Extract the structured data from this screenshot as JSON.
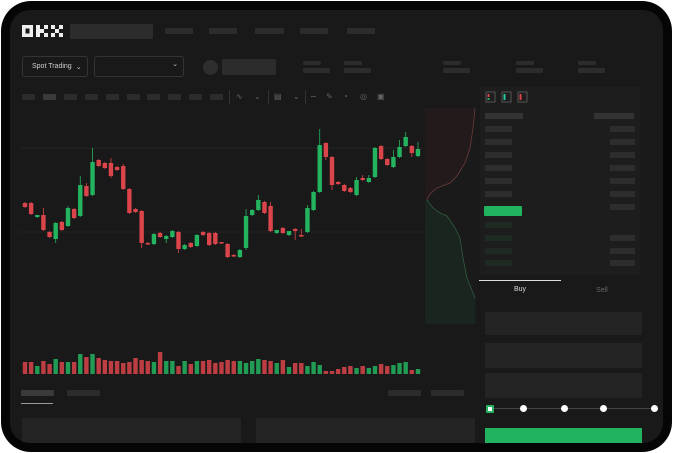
{
  "brand": {
    "logo": "OKX"
  },
  "market_selector": {
    "mode_label": "Spot Trading",
    "pair_value": ""
  },
  "order_form": {
    "tabs": [
      {
        "label": "Buy",
        "active": true
      },
      {
        "label": "Sell",
        "active": false
      }
    ],
    "slider_percent": 0
  },
  "colors": {
    "up": "#24b35f",
    "down": "#d9454a",
    "background": "#191919",
    "frame": "#050505"
  },
  "toolbar": {
    "icons": [
      "indicator-icon",
      "chevron-down-icon",
      "chart-type-icon",
      "chevron-down-icon",
      "line-tool-icon",
      "ruler-icon",
      "camera-icon",
      "target-icon",
      "fullscreen-icon"
    ]
  },
  "orderbook": {
    "layout_icons": [
      "orderbook-both-icon",
      "orderbook-bids-icon",
      "orderbook-asks-icon"
    ]
  },
  "chart_data": {
    "type": "candlestick",
    "title": "",
    "xlabel": "",
    "ylabel": "",
    "grid": true,
    "candles": [
      [
        97,
        98,
        92,
        93
      ],
      [
        97,
        98,
        85,
        86
      ],
      [
        83,
        85,
        82,
        85
      ],
      [
        85,
        92,
        69,
        70
      ],
      [
        68,
        69,
        62,
        63
      ],
      [
        61,
        78,
        57,
        77
      ],
      [
        78,
        79,
        69,
        70
      ],
      [
        74,
        94,
        73,
        92
      ],
      [
        91,
        92,
        81,
        82
      ],
      [
        84,
        124,
        83,
        115
      ],
      [
        114,
        117,
        103,
        104
      ],
      [
        105,
        152,
        104,
        138
      ],
      [
        140,
        141,
        133,
        134
      ],
      [
        137,
        138,
        131,
        132
      ],
      [
        137,
        142,
        122,
        124
      ],
      [
        133,
        134,
        129,
        130
      ],
      [
        134,
        136,
        110,
        111
      ],
      [
        111,
        112,
        86,
        87
      ],
      [
        91,
        92,
        87,
        88
      ],
      [
        89,
        90,
        52,
        57
      ],
      [
        57,
        58,
        55,
        56
      ],
      [
        56,
        67,
        55,
        66
      ],
      [
        67,
        68,
        62,
        63
      ],
      [
        61,
        65,
        57,
        64
      ],
      [
        63,
        70,
        62,
        69
      ],
      [
        68,
        69,
        47,
        51
      ],
      [
        51,
        56,
        50,
        55
      ],
      [
        57,
        58,
        52,
        53
      ],
      [
        54,
        66,
        53,
        65
      ],
      [
        68,
        69,
        64,
        65
      ],
      [
        67,
        68,
        54,
        55
      ],
      [
        67,
        68,
        55,
        56
      ],
      [
        58,
        58,
        56,
        57
      ],
      [
        56,
        57,
        42,
        43
      ],
      [
        45,
        46,
        43,
        44
      ],
      [
        43,
        51,
        42,
        50
      ],
      [
        52,
        91,
        50,
        84
      ],
      [
        85,
        91,
        84,
        90
      ],
      [
        90,
        105,
        89,
        100
      ],
      [
        98,
        99,
        86,
        87
      ],
      [
        94,
        98,
        68,
        69
      ],
      [
        67,
        70,
        66,
        70
      ],
      [
        72,
        73,
        66,
        67
      ],
      [
        65,
        69,
        64,
        69
      ],
      [
        71,
        72,
        60,
        69
      ],
      [
        65,
        71,
        63,
        64
      ],
      [
        68,
        95,
        67,
        92
      ],
      [
        90,
        109,
        89,
        108
      ],
      [
        108,
        171,
        107,
        155
      ],
      [
        157,
        158,
        140,
        143
      ],
      [
        143,
        144,
        110,
        115
      ],
      [
        118,
        119,
        115,
        116
      ],
      [
        115,
        116,
        108,
        109
      ],
      [
        112,
        113,
        107,
        108
      ],
      [
        105,
        123,
        104,
        120
      ],
      [
        122,
        125,
        119,
        120
      ],
      [
        118,
        125,
        117,
        122
      ],
      [
        123,
        153,
        122,
        152
      ],
      [
        154,
        155,
        140,
        141
      ],
      [
        141,
        142,
        134,
        135
      ],
      [
        133,
        150,
        132,
        143
      ],
      [
        143,
        160,
        142,
        153
      ],
      [
        154,
        168,
        153,
        163
      ],
      [
        154,
        155,
        143,
        147
      ],
      [
        144,
        158,
        143,
        151
      ]
    ],
    "volumes": [
      12,
      12,
      8,
      13,
      10,
      15,
      12,
      12,
      12,
      20,
      17,
      20,
      16,
      14,
      13,
      13,
      11,
      12,
      16,
      14,
      13,
      12,
      22,
      13,
      13,
      8,
      13,
      10,
      13,
      13,
      14,
      11,
      12,
      14,
      13,
      13,
      11,
      13,
      15,
      14,
      13,
      11,
      14,
      7,
      11,
      11,
      8,
      12,
      9,
      3,
      3,
      5,
      7,
      8,
      6,
      8,
      6,
      8,
      10,
      8,
      9,
      11,
      12,
      4,
      5
    ]
  }
}
